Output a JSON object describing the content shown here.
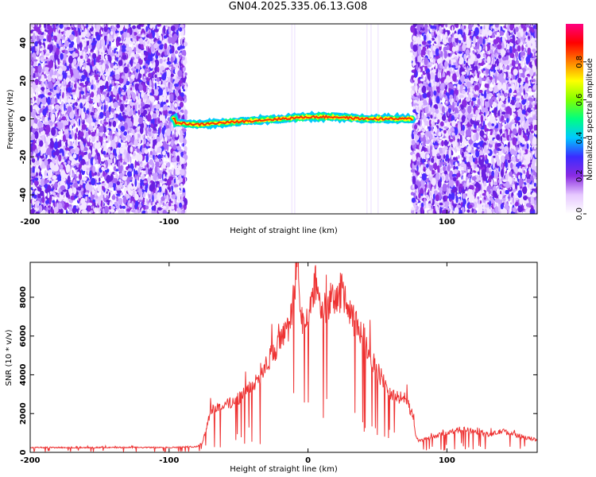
{
  "page": {
    "title": "GN04.2025.335.06.13.G08"
  },
  "chart_data": [
    {
      "type": "heatmap",
      "title": "GN04.2025.335.06.13.G08",
      "xlabel": "Height of straight line (km)",
      "ylabel": "Frequency (Hz)",
      "xlim": [
        -200,
        165
      ],
      "ylim": [
        -50,
        50
      ],
      "x_ticks": [
        -200,
        -100,
        100
      ],
      "y_ticks": [
        -40,
        -20,
        0,
        20,
        40
      ],
      "colorbar": {
        "label": "Normalized spectral amplitude",
        "range": [
          0,
          1
        ],
        "ticks": [
          0.0,
          0.2,
          0.4,
          0.6,
          0.8
        ],
        "tick_labels": [
          "0.0",
          "0.2",
          "0.4",
          "0.6",
          "0.8"
        ],
        "colors": [
          "#ffffff",
          "#e6c8ff",
          "#8a2be2",
          "#3b2bff",
          "#00c8ff",
          "#00ff80",
          "#80ff00",
          "#ffff00",
          "#ff8000",
          "#ff0000",
          "#ff0080"
        ]
      },
      "noise_regions": [
        [
          -200,
          -88
        ],
        [
          75,
          165
        ]
      ],
      "signal_band": {
        "x_range": [
          -97,
          75
        ],
        "freq_center": [
          [
            -95,
            -2
          ],
          [
            -80,
            -3
          ],
          [
            -60,
            -2
          ],
          [
            -40,
            -1
          ],
          [
            -20,
            0
          ],
          [
            0,
            1
          ],
          [
            20,
            1
          ],
          [
            40,
            0
          ],
          [
            60,
            0
          ],
          [
            75,
            0
          ]
        ]
      },
      "grid": false
    },
    {
      "type": "line",
      "xlabel": "Height of straight line (km)",
      "ylabel": "SNR (10 * v/v)",
      "xlim": [
        -200,
        165
      ],
      "ylim": [
        0,
        9800
      ],
      "x_ticks": [
        -200,
        -100,
        0,
        100
      ],
      "y_ticks": [
        0,
        2000,
        4000,
        6000,
        8000
      ],
      "color": "#ee3333",
      "series": [
        {
          "envelope_x": [
            -200,
            -150,
            -100,
            -80,
            -76,
            -70,
            -60,
            -50,
            -40,
            -30,
            -20,
            -15,
            -10,
            -8,
            -5,
            0,
            5,
            10,
            15,
            20,
            25,
            30,
            35,
            40,
            45,
            50,
            55,
            60,
            65,
            70,
            75,
            78,
            80,
            90,
            100,
            110,
            120,
            130,
            140,
            150,
            160,
            165
          ],
          "envelope_y": [
            250,
            250,
            250,
            300,
            500,
            2200,
            2400,
            2800,
            3400,
            4600,
            5700,
            6200,
            8000,
            9800,
            7000,
            6500,
            8800,
            7400,
            7800,
            7800,
            8500,
            7000,
            6600,
            6000,
            5000,
            4200,
            3600,
            3000,
            2800,
            2800,
            2000,
            700,
            600,
            800,
            1000,
            1200,
            1100,
            900,
            1100,
            900,
            700,
            650
          ],
          "noise_amp": 0.25
        }
      ],
      "grid": false
    }
  ]
}
